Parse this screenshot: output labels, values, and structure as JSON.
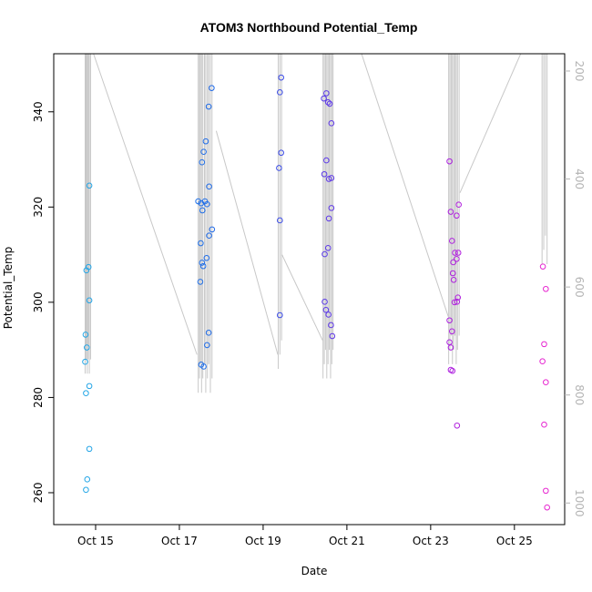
{
  "chart_data": {
    "type": "scatter",
    "title": "ATOM3 Northbound Potential_Temp",
    "xlabel": "Date",
    "ylabel": "Potential_Temp",
    "x_unit": "day of October (fractional)",
    "xlim": [
      14.0,
      26.2
    ],
    "ylim": [
      253.3,
      352.2
    ],
    "x_ticks": [
      {
        "v": 15,
        "label": "Oct 15"
      },
      {
        "v": 17,
        "label": "Oct 17"
      },
      {
        "v": 19,
        "label": "Oct 19"
      },
      {
        "v": 21,
        "label": "Oct 21"
      },
      {
        "v": 23,
        "label": "Oct 23"
      },
      {
        "v": 25,
        "label": "Oct 25"
      }
    ],
    "y_ticks": [
      260,
      280,
      300,
      320,
      340
    ],
    "y2_label_note": "secondary axis (pressure, reversed), grey",
    "y2lim": [
      1040,
      168
    ],
    "y2_ticks": [
      200,
      400,
      600,
      800,
      1000
    ],
    "point_color_ramp": [
      "#22a7e6",
      "#1f5ee8",
      "#8a1fe8",
      "#e825d0"
    ],
    "points": [
      {
        "x": 14.77,
        "y": 260.6
      },
      {
        "x": 14.8,
        "y": 262.8
      },
      {
        "x": 14.85,
        "y": 269.2
      },
      {
        "x": 14.77,
        "y": 280.9
      },
      {
        "x": 14.85,
        "y": 282.4
      },
      {
        "x": 14.75,
        "y": 287.5
      },
      {
        "x": 14.79,
        "y": 290.5
      },
      {
        "x": 14.76,
        "y": 293.2
      },
      {
        "x": 14.85,
        "y": 300.4
      },
      {
        "x": 14.78,
        "y": 306.7
      },
      {
        "x": 14.83,
        "y": 307.4
      },
      {
        "x": 14.85,
        "y": 324.5
      },
      {
        "x": 17.52,
        "y": 286.9
      },
      {
        "x": 17.58,
        "y": 286.5
      },
      {
        "x": 17.66,
        "y": 291.0
      },
      {
        "x": 17.7,
        "y": 293.6
      },
      {
        "x": 17.5,
        "y": 304.3
      },
      {
        "x": 17.57,
        "y": 307.6
      },
      {
        "x": 17.54,
        "y": 308.3
      },
      {
        "x": 17.65,
        "y": 309.3
      },
      {
        "x": 17.51,
        "y": 312.4
      },
      {
        "x": 17.71,
        "y": 314.0
      },
      {
        "x": 17.78,
        "y": 315.3
      },
      {
        "x": 17.55,
        "y": 319.3
      },
      {
        "x": 17.45,
        "y": 321.2
      },
      {
        "x": 17.52,
        "y": 320.8
      },
      {
        "x": 17.61,
        "y": 321.2
      },
      {
        "x": 17.66,
        "y": 320.6
      },
      {
        "x": 17.71,
        "y": 324.3
      },
      {
        "x": 17.54,
        "y": 329.4
      },
      {
        "x": 17.58,
        "y": 331.6
      },
      {
        "x": 17.63,
        "y": 333.8
      },
      {
        "x": 17.7,
        "y": 341.1
      },
      {
        "x": 17.77,
        "y": 345.0
      },
      {
        "x": 19.4,
        "y": 297.3
      },
      {
        "x": 19.4,
        "y": 317.2
      },
      {
        "x": 19.38,
        "y": 328.2
      },
      {
        "x": 19.43,
        "y": 331.4
      },
      {
        "x": 19.4,
        "y": 344.1
      },
      {
        "x": 19.43,
        "y": 347.2
      },
      {
        "x": 20.47,
        "y": 300.1
      },
      {
        "x": 20.5,
        "y": 298.4
      },
      {
        "x": 20.56,
        "y": 297.4
      },
      {
        "x": 20.62,
        "y": 295.2
      },
      {
        "x": 20.65,
        "y": 292.9
      },
      {
        "x": 20.47,
        "y": 310.1
      },
      {
        "x": 20.55,
        "y": 311.4
      },
      {
        "x": 20.57,
        "y": 317.6
      },
      {
        "x": 20.63,
        "y": 319.8
      },
      {
        "x": 20.46,
        "y": 326.9
      },
      {
        "x": 20.57,
        "y": 325.9
      },
      {
        "x": 20.63,
        "y": 326.1
      },
      {
        "x": 20.51,
        "y": 329.8
      },
      {
        "x": 20.63,
        "y": 337.6
      },
      {
        "x": 20.45,
        "y": 342.8
      },
      {
        "x": 20.55,
        "y": 342.0
      },
      {
        "x": 20.59,
        "y": 341.7
      },
      {
        "x": 20.51,
        "y": 343.9
      },
      {
        "x": 23.45,
        "y": 296.2
      },
      {
        "x": 23.45,
        "y": 291.6
      },
      {
        "x": 23.48,
        "y": 290.5
      },
      {
        "x": 23.51,
        "y": 293.9
      },
      {
        "x": 23.48,
        "y": 285.8
      },
      {
        "x": 23.52,
        "y": 285.6
      },
      {
        "x": 23.63,
        "y": 274.1
      },
      {
        "x": 23.48,
        "y": 319.0
      },
      {
        "x": 23.51,
        "y": 312.9
      },
      {
        "x": 23.58,
        "y": 310.4
      },
      {
        "x": 23.54,
        "y": 308.4
      },
      {
        "x": 23.53,
        "y": 306.1
      },
      {
        "x": 23.55,
        "y": 304.7
      },
      {
        "x": 23.57,
        "y": 300.0
      },
      {
        "x": 23.63,
        "y": 300.1
      },
      {
        "x": 23.65,
        "y": 301.0
      },
      {
        "x": 23.62,
        "y": 309.1
      },
      {
        "x": 23.66,
        "y": 310.4
      },
      {
        "x": 23.62,
        "y": 318.2
      },
      {
        "x": 23.67,
        "y": 320.5
      },
      {
        "x": 23.45,
        "y": 329.6
      },
      {
        "x": 25.68,
        "y": 307.5
      },
      {
        "x": 25.75,
        "y": 302.8
      },
      {
        "x": 25.67,
        "y": 287.6
      },
      {
        "x": 25.71,
        "y": 291.2
      },
      {
        "x": 25.75,
        "y": 283.2
      },
      {
        "x": 25.71,
        "y": 274.3
      },
      {
        "x": 25.75,
        "y": 260.4
      },
      {
        "x": 25.78,
        "y": 256.9
      }
    ],
    "profile_line_color": "#c8c8c8",
    "profile_groups": [
      {
        "xs": [
          14.75,
          14.77,
          14.78,
          14.8,
          14.82,
          14.83,
          14.85,
          14.88
        ],
        "ytop": 352.2,
        "ybot": 285.0
      },
      {
        "xs": [
          17.45,
          17.48,
          17.5,
          17.53,
          17.56,
          17.6,
          17.63,
          17.67,
          17.7,
          17.74,
          17.78
        ],
        "ytop": 352.2,
        "ybot": 281.0
      },
      {
        "xs": [
          19.36,
          19.4,
          19.44
        ],
        "ytop": 352.2,
        "ybot": 286.0
      },
      {
        "xs": [
          20.43,
          20.46,
          20.49,
          20.52,
          20.55,
          20.58,
          20.61,
          20.64,
          20.67
        ],
        "ytop": 352.2,
        "ybot": 284.0
      },
      {
        "xs": [
          23.43,
          23.46,
          23.49,
          23.52,
          23.55,
          23.58,
          23.61,
          23.64,
          23.68
        ],
        "ytop": 352.2,
        "ybot": 287.0
      },
      {
        "xs": [
          25.66,
          25.7,
          25.74,
          25.78
        ],
        "ytop": 352.2,
        "ybot": 308.0
      }
    ],
    "transit_lines": [
      [
        [
          14.95,
          352.2
        ],
        [
          17.42,
          289.0
        ]
      ],
      [
        [
          17.88,
          336.0
        ],
        [
          19.35,
          289.0
        ]
      ],
      [
        [
          19.45,
          310.0
        ],
        [
          20.42,
          292.0
        ]
      ],
      [
        [
          21.35,
          352.2
        ],
        [
          23.42,
          297.0
        ]
      ],
      [
        [
          23.7,
          323.0
        ],
        [
          25.15,
          352.2
        ]
      ]
    ]
  }
}
